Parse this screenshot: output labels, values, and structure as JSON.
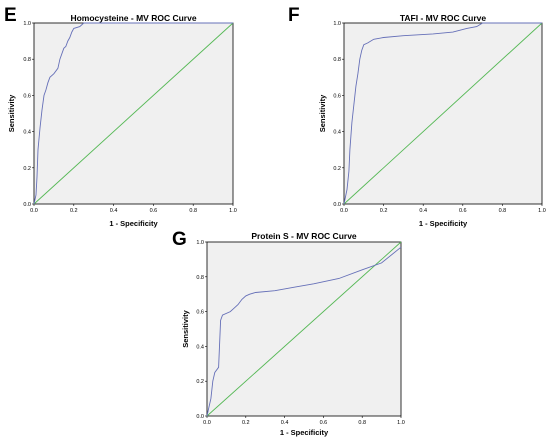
{
  "colors": {
    "roc_line": "#6670b8",
    "reference_line": "#55b855",
    "plot_bg": "#f0f0f0",
    "border": "#000000"
  },
  "chart_data": [
    {
      "panel": "E",
      "type": "line",
      "title": "Homocysteine - MV ROC Curve",
      "xlabel": "1 - Specificity",
      "ylabel": "Sensitivity",
      "xlim": [
        0,
        1
      ],
      "ylim": [
        0,
        1
      ],
      "xticks": [
        "0.0",
        "0.2",
        "0.4",
        "0.6",
        "0.8",
        "1.0"
      ],
      "yticks": [
        "0.0",
        "0.2",
        "0.4",
        "0.6",
        "0.8",
        "1.0"
      ],
      "grid": false,
      "reference_line": [
        [
          0,
          0
        ],
        [
          1,
          1
        ]
      ],
      "roc_points": [
        [
          0,
          0
        ],
        [
          0.01,
          0.05
        ],
        [
          0.015,
          0.15
        ],
        [
          0.02,
          0.3
        ],
        [
          0.03,
          0.42
        ],
        [
          0.04,
          0.52
        ],
        [
          0.05,
          0.6
        ],
        [
          0.06,
          0.63
        ],
        [
          0.07,
          0.67
        ],
        [
          0.08,
          0.7
        ],
        [
          0.1,
          0.72
        ],
        [
          0.12,
          0.75
        ],
        [
          0.13,
          0.8
        ],
        [
          0.15,
          0.86
        ],
        [
          0.16,
          0.87
        ],
        [
          0.17,
          0.9
        ],
        [
          0.18,
          0.92
        ],
        [
          0.19,
          0.95
        ],
        [
          0.2,
          0.97
        ],
        [
          0.23,
          0.98
        ],
        [
          0.25,
          1.0
        ],
        [
          1.0,
          1.0
        ]
      ]
    },
    {
      "panel": "F",
      "type": "line",
      "title": "TAFI - MV ROC Curve",
      "xlabel": "1 - Specificity",
      "ylabel": "Sensitivity",
      "xlim": [
        0,
        1
      ],
      "ylim": [
        0,
        1
      ],
      "xticks": [
        "0.0",
        "0.2",
        "0.4",
        "0.6",
        "0.8",
        "1.0"
      ],
      "yticks": [
        "0.0",
        "0.2",
        "0.4",
        "0.6",
        "0.8",
        "1.0"
      ],
      "grid": false,
      "reference_line": [
        [
          0,
          0
        ],
        [
          1,
          1
        ]
      ],
      "roc_points": [
        [
          0,
          0
        ],
        [
          0.015,
          0.08
        ],
        [
          0.025,
          0.18
        ],
        [
          0.03,
          0.3
        ],
        [
          0.04,
          0.45
        ],
        [
          0.05,
          0.55
        ],
        [
          0.06,
          0.65
        ],
        [
          0.07,
          0.72
        ],
        [
          0.08,
          0.8
        ],
        [
          0.09,
          0.85
        ],
        [
          0.1,
          0.88
        ],
        [
          0.12,
          0.89
        ],
        [
          0.15,
          0.91
        ],
        [
          0.2,
          0.92
        ],
        [
          0.3,
          0.93
        ],
        [
          0.45,
          0.94
        ],
        [
          0.55,
          0.95
        ],
        [
          0.62,
          0.97
        ],
        [
          0.67,
          0.98
        ],
        [
          0.7,
          1.0
        ],
        [
          1.0,
          1.0
        ]
      ]
    },
    {
      "panel": "G",
      "type": "line",
      "title": "Protein S - MV ROC Curve",
      "xlabel": "1 - Specificity",
      "ylabel": "Sensitivity",
      "xlim": [
        0,
        1
      ],
      "ylim": [
        0,
        1
      ],
      "xticks": [
        "0.0",
        "0.2",
        "0.4",
        "0.6",
        "0.8",
        "1.0"
      ],
      "yticks": [
        "0.0",
        "0.2",
        "0.4",
        "0.6",
        "0.8",
        "1.0"
      ],
      "grid": false,
      "reference_line": [
        [
          0,
          0
        ],
        [
          1,
          1
        ]
      ],
      "roc_points": [
        [
          0,
          0
        ],
        [
          0.01,
          0.05
        ],
        [
          0.02,
          0.1
        ],
        [
          0.03,
          0.2
        ],
        [
          0.04,
          0.25
        ],
        [
          0.06,
          0.28
        ],
        [
          0.07,
          0.55
        ],
        [
          0.08,
          0.58
        ],
        [
          0.12,
          0.6
        ],
        [
          0.14,
          0.62
        ],
        [
          0.16,
          0.64
        ],
        [
          0.18,
          0.67
        ],
        [
          0.2,
          0.69
        ],
        [
          0.22,
          0.7
        ],
        [
          0.25,
          0.71
        ],
        [
          0.35,
          0.72
        ],
        [
          0.45,
          0.74
        ],
        [
          0.55,
          0.76
        ],
        [
          0.68,
          0.79
        ],
        [
          0.8,
          0.84
        ],
        [
          0.9,
          0.88
        ],
        [
          1.0,
          0.97
        ]
      ]
    }
  ]
}
